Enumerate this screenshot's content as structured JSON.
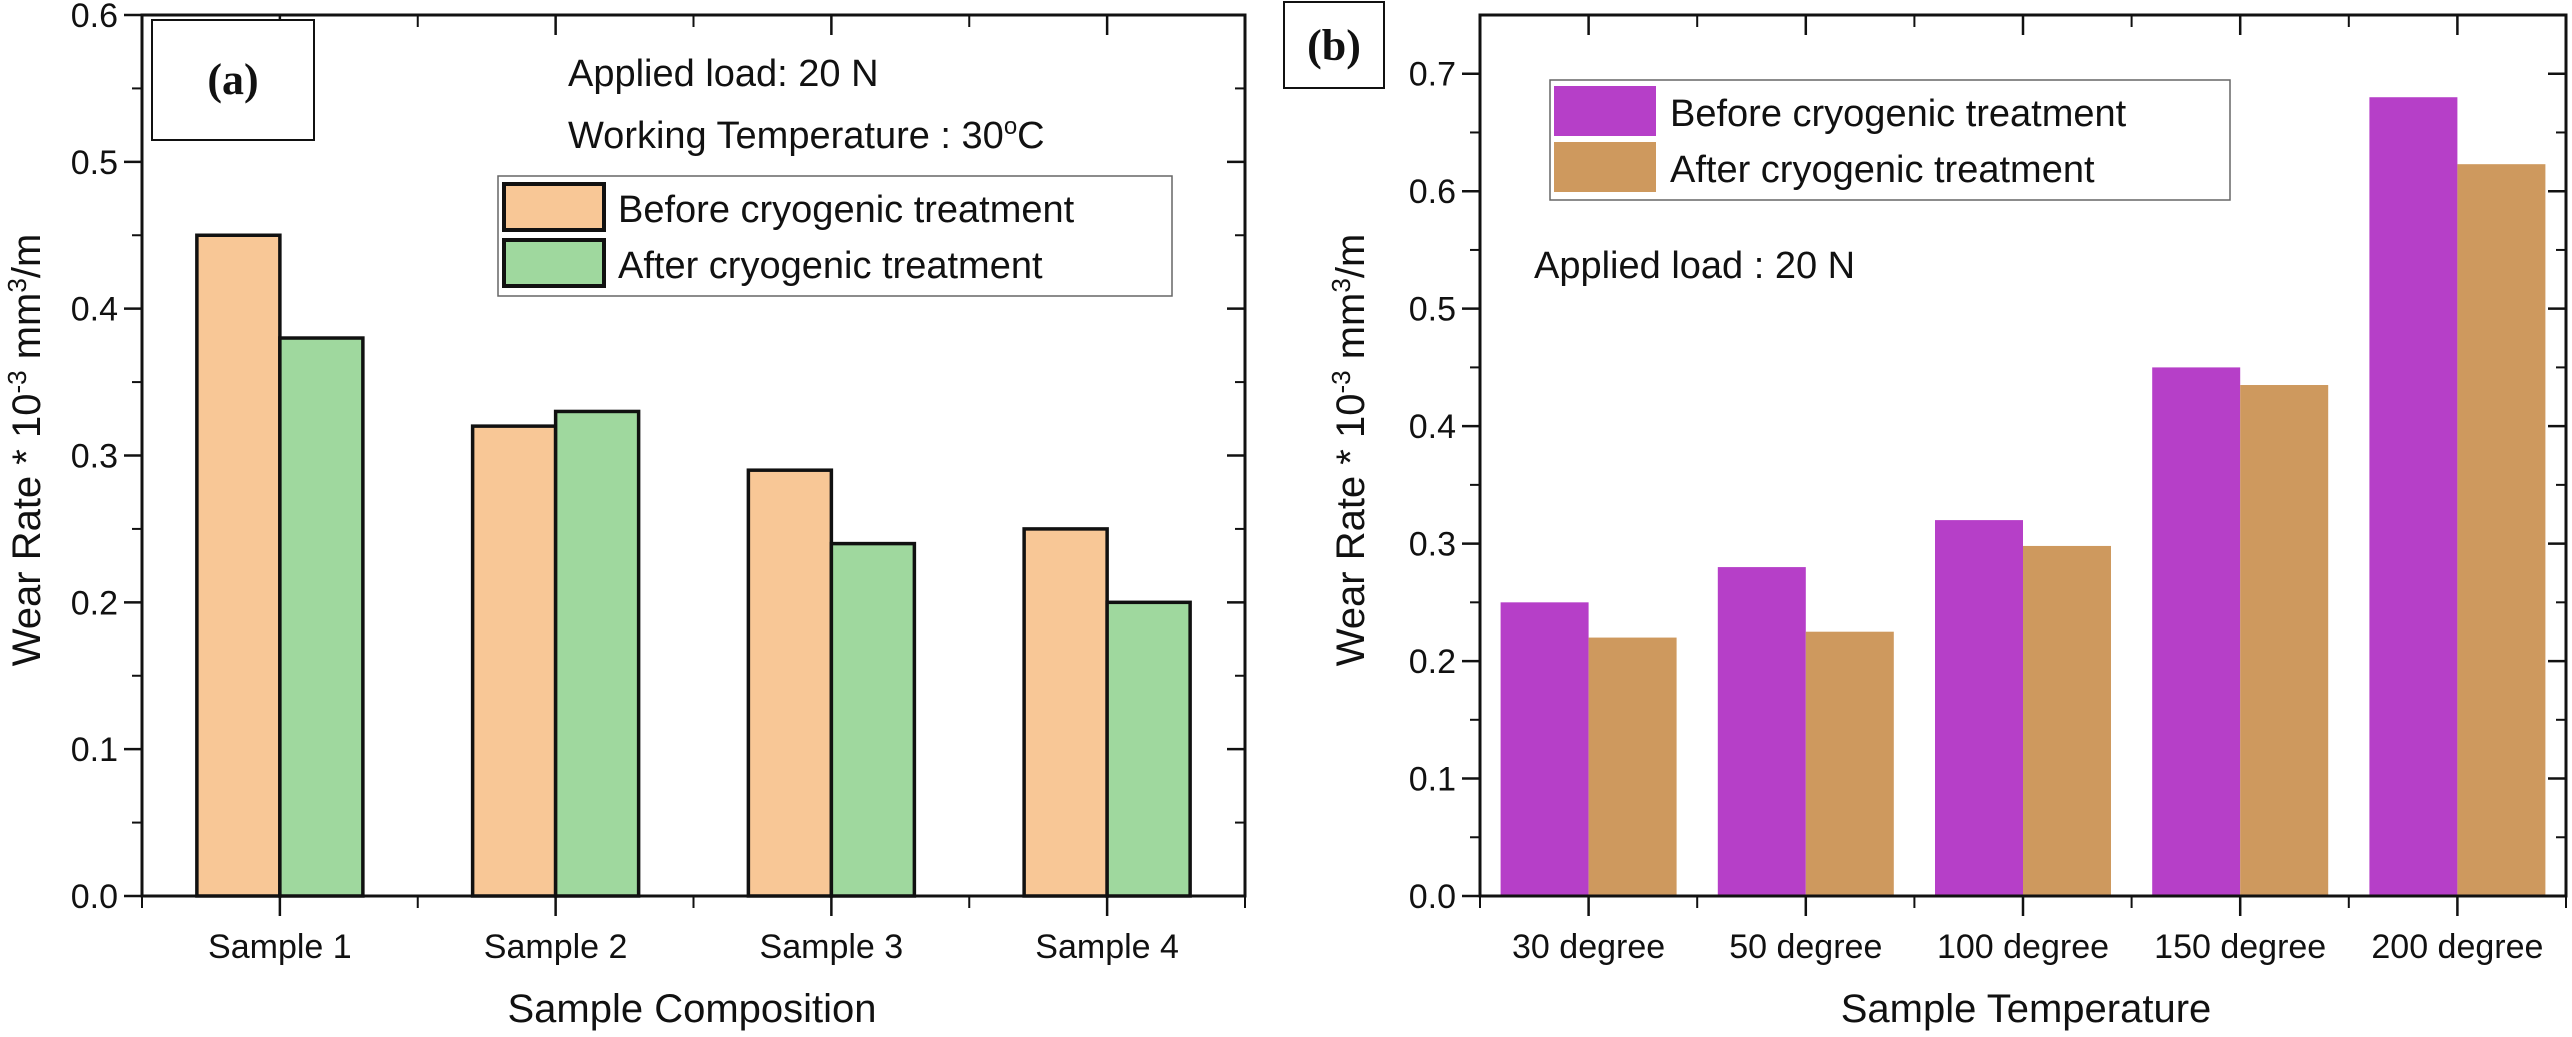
{
  "chart_data": [
    {
      "panel": "(a)",
      "type": "bar",
      "title": "",
      "xlabel": "Sample Composition",
      "ylabel": "Wear Rate * 10^-3 mm^3/m",
      "ylabel_parts": {
        "main": "Wear Rate * 10",
        "exp1": "-3",
        "mid": " mm",
        "exp2": "3",
        "end": "/m"
      },
      "categories": [
        "Sample 1",
        "Sample 2",
        "Sample 3",
        "Sample 4"
      ],
      "series": [
        {
          "name": "Before cryogenic treatment",
          "color": "#F8C796",
          "values": [
            0.45,
            0.32,
            0.29,
            0.25
          ]
        },
        {
          "name": "After cryogenic treatment",
          "color": "#9FD89E",
          "values": [
            0.38,
            0.33,
            0.24,
            0.2
          ]
        }
      ],
      "ylim": [
        0,
        0.6
      ],
      "yticks": [
        "0.0",
        "0.1",
        "0.2",
        "0.3",
        "0.4",
        "0.5",
        "0.6"
      ],
      "annotations": [
        "Applied load: 20 N",
        "Working Temperature : 30°C"
      ],
      "annotation_temp": {
        "prefix": "Working Temperature : 30",
        "sup": "o",
        "suffix": "C"
      },
      "legend_position": "top-right",
      "bar_outline": true,
      "grid": false
    },
    {
      "panel": "(b)",
      "type": "bar",
      "title": "",
      "xlabel": "Sample Temperature",
      "ylabel": "Wear Rate * 10^-3 mm^3/m",
      "ylabel_parts": {
        "main": "Wear Rate * 10",
        "exp1": "-3",
        "mid": " mm",
        "exp2": "3",
        "end": "/m"
      },
      "categories": [
        "30 degree",
        "50 degree",
        "100 degree",
        "150 degree",
        "200 degree"
      ],
      "series": [
        {
          "name": "Before cryogenic treatment",
          "color": "#B63FC8",
          "values": [
            0.25,
            0.28,
            0.32,
            0.45,
            0.68
          ]
        },
        {
          "name": "After cryogenic treatment",
          "color": "#CE995E",
          "values": [
            0.22,
            0.225,
            0.298,
            0.435,
            0.623
          ]
        }
      ],
      "ylim": [
        0,
        0.75
      ],
      "yticks": [
        "0.0",
        "0.1",
        "0.2",
        "0.3",
        "0.4",
        "0.5",
        "0.6",
        "0.7"
      ],
      "annotations": [
        "Applied load : 20 N"
      ],
      "legend_position": "top-left",
      "bar_outline": false,
      "grid": false
    }
  ]
}
